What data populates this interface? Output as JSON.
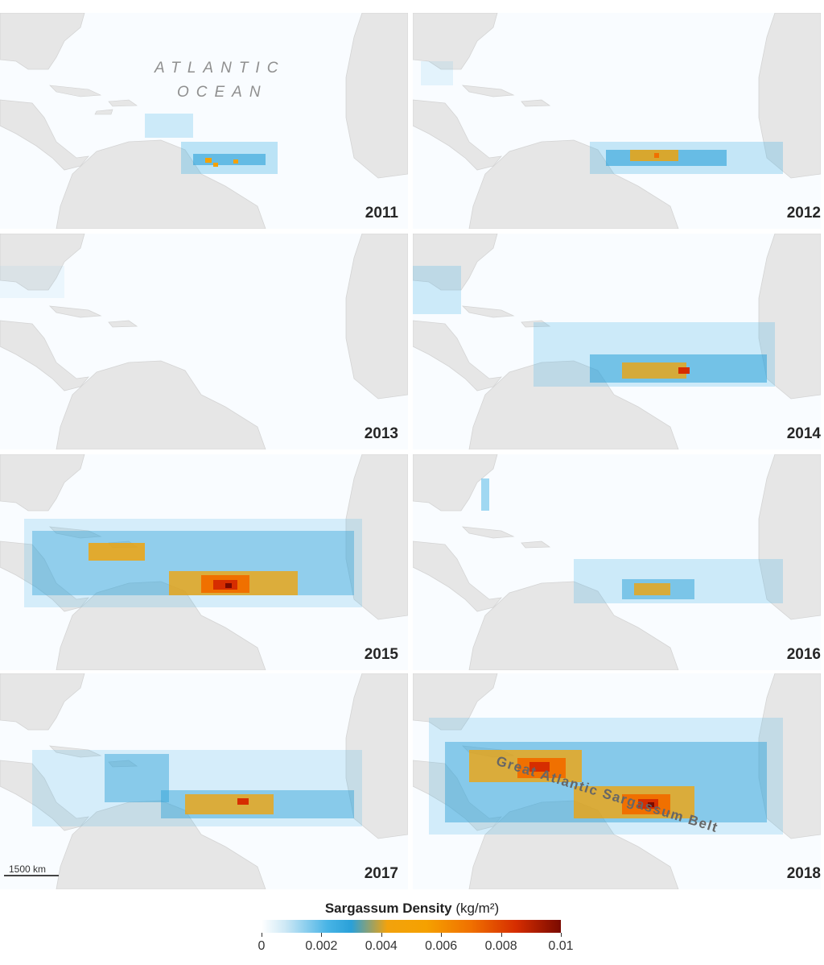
{
  "panels": [
    {
      "year": "2011"
    },
    {
      "year": "2012"
    },
    {
      "year": "2013"
    },
    {
      "year": "2014"
    },
    {
      "year": "2015"
    },
    {
      "year": "2016"
    },
    {
      "year": "2017"
    },
    {
      "year": "2018"
    }
  ],
  "labels": {
    "ocean_line1": "ATLANTIC",
    "ocean_line2": "OCEAN",
    "belt": "Great Atlantic Sargassum Belt",
    "scale": "1500 km"
  },
  "legend": {
    "title": "Sargassum Density",
    "unit": "(kg/m²)",
    "ticks": [
      "0",
      "0.002",
      "0.004",
      "0.006",
      "0.008",
      "0.01"
    ],
    "colors": [
      "#ffffff",
      "#48b4e6",
      "#f5a100",
      "#f07000",
      "#d62d00",
      "#7a0a00"
    ]
  },
  "colors": {
    "land": "#e6e6e6",
    "ocean": "#f9fcff",
    "low_density": "#48b4e6",
    "mid_density": "#f5a100",
    "high_density": "#d62d00",
    "max_density": "#7a0a00"
  }
}
